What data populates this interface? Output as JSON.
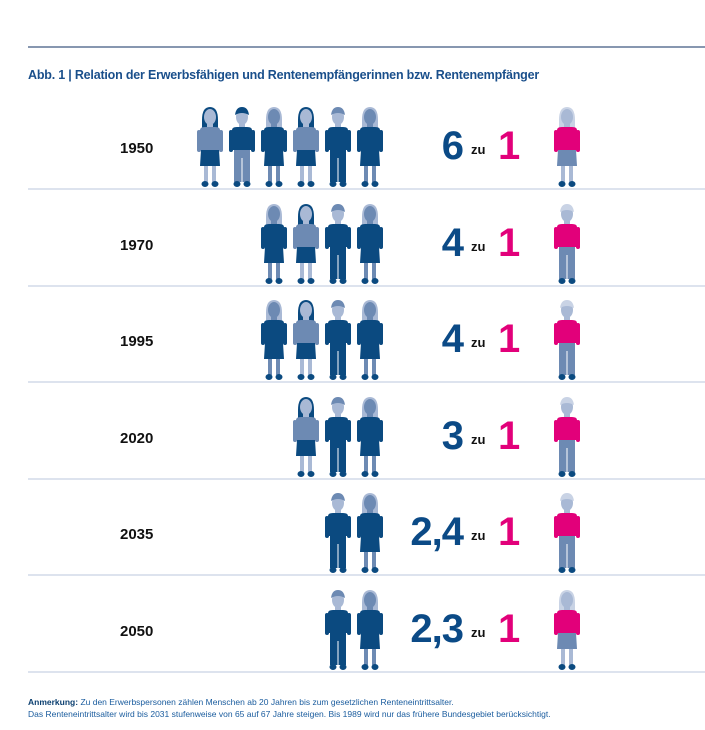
{
  "title": "Abb. 1 | Relation der Erwerbsfähigen und Rentenempfängerinnen bzw. Rentenempfänger",
  "colors": {
    "dark": "#0b4a80",
    "mid": "#6d8ab3",
    "light": "#a9b9d5",
    "pink": "#e2007a"
  },
  "chart_data": {
    "type": "pictogram",
    "rows": [
      {
        "year": "1950",
        "workers": 6,
        "ratio_label": "6",
        "zu": "zu",
        "retirees_label": "1"
      },
      {
        "year": "1970",
        "workers": 4,
        "ratio_label": "4",
        "zu": "zu",
        "retirees_label": "1"
      },
      {
        "year": "1995",
        "workers": 4,
        "ratio_label": "4",
        "zu": "zu",
        "retirees_label": "1"
      },
      {
        "year": "2020",
        "workers": 3,
        "ratio_label": "3",
        "zu": "zu",
        "retirees_label": "1"
      },
      {
        "year": "2035",
        "workers": 2,
        "ratio_label": "2,4",
        "zu": "zu",
        "retirees_label": "1"
      },
      {
        "year": "2050",
        "workers": 2,
        "ratio_label": "2,3",
        "zu": "zu",
        "retirees_label": "1"
      }
    ]
  },
  "note": {
    "label": "Anmerkung:",
    "line1": "Zu den Erwerbspersonen zählen Menschen ab 20 Jahren bis zum gesetzlichen Renteneintrittsalter.",
    "line2": "Das Renteneintrittsalter wird bis 2031 stufenweise von 65 auf 67 Jahre steigen. Bis 1989 wird nur das frühere Bundesgebiet berücksichtigt."
  }
}
